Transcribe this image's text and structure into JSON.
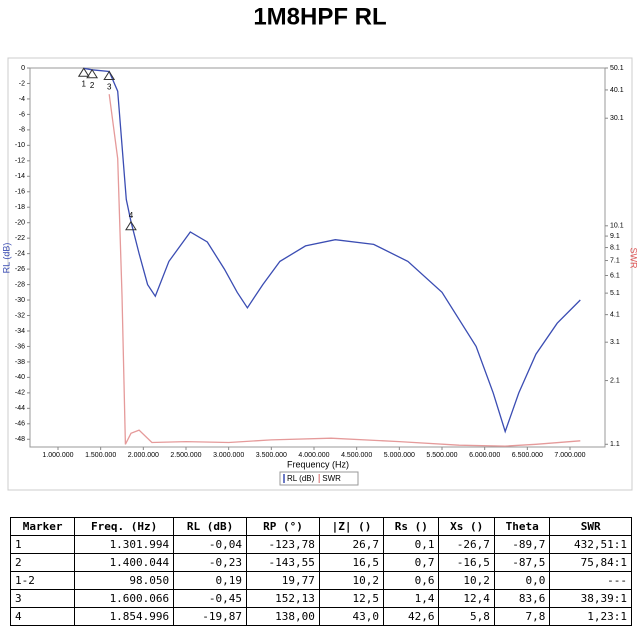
{
  "chart_data": {
    "type": "line",
    "title": "1M8HPF RL",
    "xlabel": "Frequency (Hz)",
    "ylabel": "RL (dB)",
    "y2label": "SWR",
    "xlim": [
      672000,
      7410000
    ],
    "xticks": [
      {
        "value": 1000000,
        "label": "1.000.000"
      },
      {
        "value": 1500000,
        "label": "1.500.000"
      },
      {
        "value": 2000000,
        "label": "2.000.000"
      },
      {
        "value": 2500000,
        "label": "2.500.000"
      },
      {
        "value": 3000000,
        "label": "3.000.000"
      },
      {
        "value": 3500000,
        "label": "3.500.000"
      },
      {
        "value": 4000000,
        "label": "4.000.000"
      },
      {
        "value": 4500000,
        "label": "4.500.000"
      },
      {
        "value": 5000000,
        "label": "5.000.000"
      },
      {
        "value": 5500000,
        "label": "5.500.000"
      },
      {
        "value": 6000000,
        "label": "6.000.000"
      },
      {
        "value": 6500000,
        "label": "6.500.000"
      },
      {
        "value": 7000000,
        "label": "7.000.000"
      }
    ],
    "ylim": [
      -49,
      0
    ],
    "yticks": [
      0,
      -2,
      -4,
      -6,
      -8,
      -10,
      -12,
      -14,
      -16,
      -18,
      -20,
      -22,
      -24,
      -26,
      -28,
      -30,
      -32,
      -34,
      -36,
      -38,
      -40,
      -42,
      -44,
      -46,
      -48
    ],
    "y2lim": [
      1.07,
      50.1
    ],
    "y2scale": "log",
    "y2ticks": [
      50.1,
      40.1,
      30.1,
      10.1,
      9.1,
      8.1,
      7.1,
      6.1,
      5.1,
      4.1,
      3.1,
      2.1,
      1.1
    ],
    "series": [
      {
        "name": "RL (dB)",
        "color": "#3b4db3",
        "x": [
          1300000,
          1400000,
          1600000,
          1700000,
          1750000,
          1800000,
          1855000,
          1950000,
          2050000,
          2140000,
          2300000,
          2550000,
          2750000,
          2950000,
          3100000,
          3220000,
          3400000,
          3600000,
          3900000,
          4250000,
          4700000,
          5100000,
          5500000,
          5900000,
          6100000,
          6240000,
          6400000,
          6600000,
          6850000,
          7120000
        ],
        "values": [
          -0.04,
          -0.23,
          -0.45,
          -3,
          -10,
          -17,
          -19.87,
          -24,
          -28,
          -29.5,
          -25,
          -21.2,
          -22.5,
          -26,
          -29,
          -31,
          -28,
          -25,
          -23,
          -22.2,
          -22.8,
          -25,
          -29,
          -36,
          -42,
          -47,
          -42,
          -37,
          -33,
          -30
        ]
      },
      {
        "name": "SWR",
        "color": "#e59a9a",
        "axis": "y2",
        "x": [
          1600000,
          1700000,
          1750000,
          1790000,
          1855000,
          1950000,
          2100000,
          2500000,
          3000000,
          3500000,
          4200000,
          5000000,
          5700000,
          6240000,
          6600000,
          7120000
        ],
        "values": [
          38.39,
          20,
          5,
          1.1,
          1.23,
          1.27,
          1.12,
          1.13,
          1.12,
          1.15,
          1.17,
          1.13,
          1.09,
          1.08,
          1.1,
          1.14
        ]
      }
    ],
    "markers": [
      {
        "label": "1",
        "x": 1301994,
        "y": -0.04
      },
      {
        "label": "2",
        "x": 1400044,
        "y": -0.23
      },
      {
        "label": "3",
        "x": 1600066,
        "y": -0.45
      },
      {
        "label": "4",
        "x": 1854996,
        "y": -19.87
      }
    ],
    "legend": "bottom"
  },
  "table": {
    "header": [
      "Marker",
      "Freq. (Hz)",
      "RL (dB)",
      "RP (°)",
      "|Z| ()",
      "Rs ()",
      "Xs ()",
      "Theta",
      "SWR"
    ],
    "rows": [
      [
        "1",
        "1.301.994",
        "-0,04",
        "-123,78",
        "26,7",
        "0,1",
        "-26,7",
        "-89,7",
        "432,51:1"
      ],
      [
        "2",
        "1.400.044",
        "-0,23",
        "-143,55",
        "16,5",
        "0,7",
        "-16,5",
        "-87,5",
        "75,84:1"
      ],
      [
        "1-2",
        "98.050",
        "0,19",
        "19,77",
        "10,2",
        "0,6",
        "10,2",
        "0,0",
        "---"
      ],
      [
        "3",
        "1.600.066",
        "-0,45",
        "152,13",
        "12,5",
        "1,4",
        "12,4",
        "83,6",
        "38,39:1"
      ],
      [
        "4",
        "1.854.996",
        "-19,87",
        "138,00",
        "43,0",
        "42,6",
        "5,8",
        "7,8",
        "1,23:1"
      ]
    ]
  }
}
